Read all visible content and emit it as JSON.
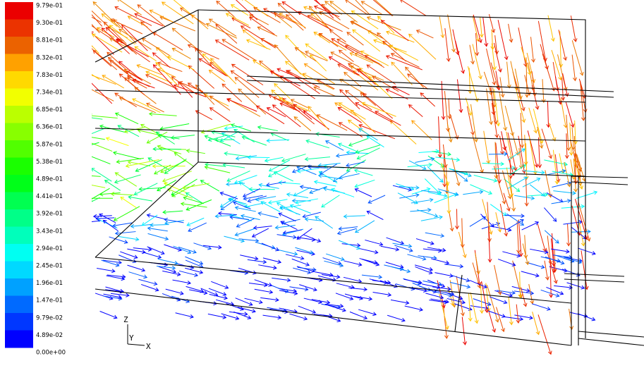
{
  "colorbar": {
    "labels": [
      "9.79e-01",
      "9.30e-01",
      "8.81e-01",
      "8.32e-01",
      "7.83e-01",
      "7.34e-01",
      "6.85e-01",
      "6.36e-01",
      "5.87e-01",
      "5.38e-01",
      "4.89e-01",
      "4.41e-01",
      "3.92e-01",
      "3.43e-01",
      "2.94e-01",
      "2.45e-01",
      "1.96e-01",
      "1.47e-01",
      "9.79e-02",
      "4.89e-02",
      "0.00e+00"
    ]
  },
  "axes": {
    "z": "Z",
    "y": "Y",
    "x": "X"
  }
}
